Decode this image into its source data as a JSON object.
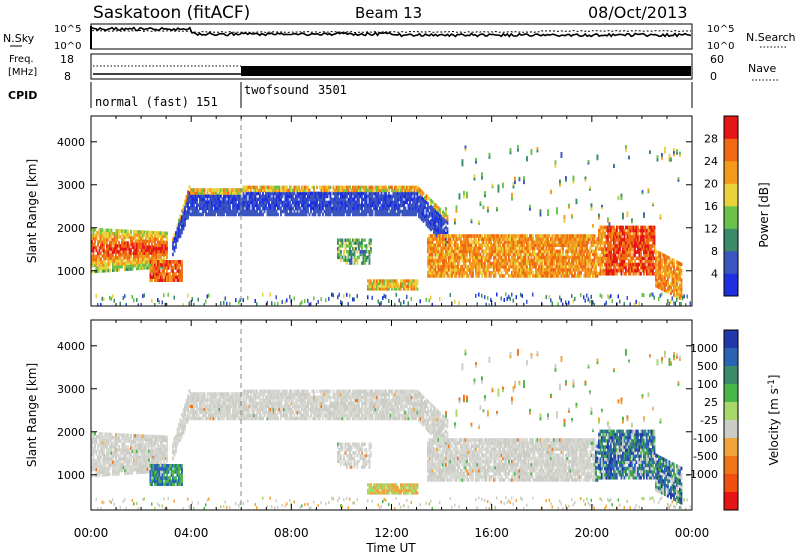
{
  "header": {
    "station": "Saskatoon (fitACF)",
    "beam": "Beam 13",
    "date": "08/Oct/2013"
  },
  "noise_panel": {
    "left_label": "N.Sky",
    "right_label": "N.Search",
    "left_ticks": [
      "10^5",
      "10^0"
    ],
    "right_ticks": [
      "10^5",
      "10^0"
    ]
  },
  "freq_panel": {
    "left_label_line1": "Freq.",
    "left_label_line2": "[MHz]",
    "left_ticks": [
      "18",
      "8"
    ],
    "right_label": "Nave",
    "right_ticks": [
      "60",
      "0"
    ]
  },
  "cpid_panel": {
    "label": "CPID",
    "modes": [
      {
        "name": "normal (fast)",
        "id": "151"
      },
      {
        "name": "twofsound",
        "id": "3501"
      }
    ]
  },
  "chart_data": [
    {
      "type": "heatmap",
      "title": "",
      "xlabel": "Time UT",
      "ylabel": "Slant Range [km]",
      "xlim": [
        "00:00",
        "24:00"
      ],
      "ylim": [
        180,
        4600
      ],
      "x_ticks": [
        "00:00",
        "04:00",
        "08:00",
        "12:00",
        "16:00",
        "20:00",
        "00:00"
      ],
      "y_ticks": [
        1000,
        2000,
        3000,
        4000
      ],
      "colorbar": {
        "label": "Power [dB]",
        "ticks": [
          4,
          8,
          12,
          16,
          20,
          24,
          28
        ],
        "colors": [
          "#1e2fe0",
          "#3a55c0",
          "#3b8a68",
          "#6ac24a",
          "#e9d23a",
          "#f39a1c",
          "#f06a14",
          "#e51616"
        ]
      },
      "mode_change_time": "06:00",
      "features": [
        {
          "time": [
            "00:00",
            "03:00"
          ],
          "range_km": [
            1000,
            2000
          ],
          "power_db": 20
        },
        {
          "time": [
            "03:30",
            "13:00"
          ],
          "range_km": [
            2200,
            3000
          ],
          "power_db": 8
        },
        {
          "time": [
            "13:30",
            "21:00"
          ],
          "range_km": [
            900,
            1800
          ],
          "power_db": 24
        },
        {
          "time": [
            "20:00",
            "23:00"
          ],
          "range_km": [
            900,
            2000
          ],
          "power_db": 28
        }
      ]
    },
    {
      "type": "heatmap",
      "title": "",
      "xlabel": "Time UT",
      "ylabel": "Slant Range [km]",
      "xlim": [
        "00:00",
        "24:00"
      ],
      "ylim": [
        180,
        4600
      ],
      "x_ticks": [
        "00:00",
        "04:00",
        "08:00",
        "12:00",
        "16:00",
        "20:00",
        "00:00"
      ],
      "y_ticks": [
        1000,
        2000,
        3000,
        4000
      ],
      "colorbar": {
        "label": "Velocity [m s^-1]",
        "ticks": [
          "1000",
          "500",
          "100",
          "25",
          "-25",
          "-100",
          "-500",
          "-1000"
        ],
        "colors": [
          "#2237a8",
          "#2a63b4",
          "#3b8a68",
          "#49b64a",
          "#a8d86a",
          "#cdcdc8",
          "#f0a43a",
          "#f07418",
          "#f04f12",
          "#e61414"
        ]
      },
      "mode_change_time": "06:00",
      "features": [
        {
          "time": [
            "00:00",
            "03:00"
          ],
          "range_km": [
            1000,
            2000
          ],
          "velocity": 0
        },
        {
          "time": [
            "03:30",
            "13:00"
          ],
          "range_km": [
            2200,
            3000
          ],
          "velocity": 0
        },
        {
          "time": [
            "13:30",
            "20:00"
          ],
          "range_km": [
            900,
            1800
          ],
          "velocity": 0
        },
        {
          "time": [
            "20:00",
            "23:30"
          ],
          "range_km": [
            900,
            2000
          ],
          "velocity": 500
        }
      ]
    }
  ]
}
